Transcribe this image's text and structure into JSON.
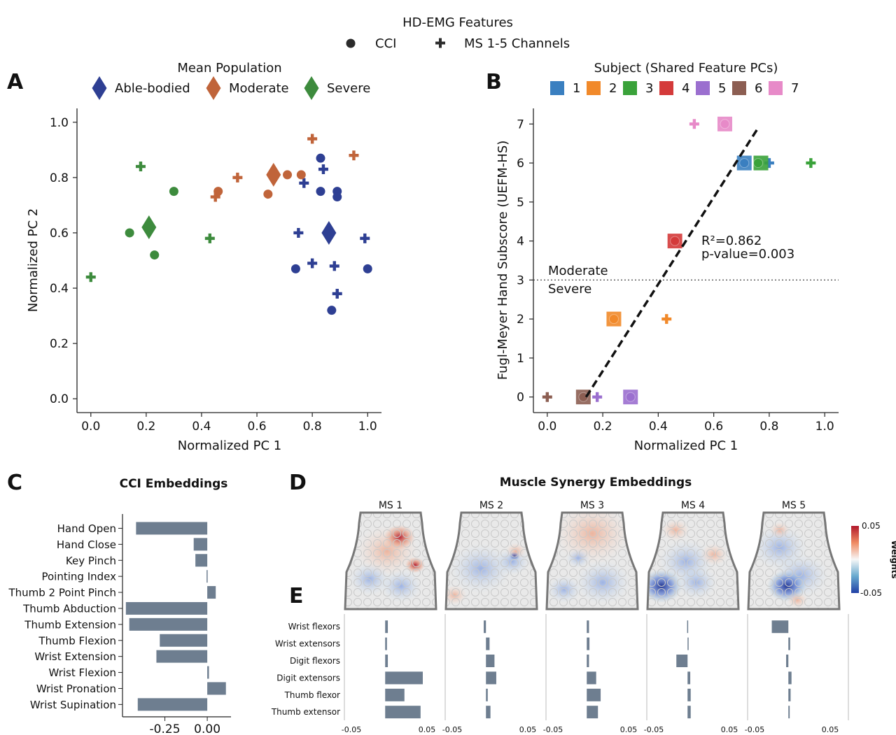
{
  "colors": {
    "able": "#2e3f93",
    "moderate": "#c0643a",
    "severe": "#3d8b3d",
    "bar": "#6e7e90",
    "subjects": [
      "#3a7fc0",
      "#f1892a",
      "#3aa23a",
      "#d43a3a",
      "#9b6fcf",
      "#8c5e52",
      "#e78ac8"
    ]
  },
  "top_legend": {
    "title": "HD-EMG Features",
    "items": [
      {
        "label": "CCI",
        "marker": "circle"
      },
      {
        "label": "MS 1-5 Channels",
        "marker": "plus"
      }
    ]
  },
  "chart_data": [
    {
      "panel": "A",
      "type": "scatter",
      "xlabel": "Normalized PC 1",
      "ylabel": "Normalized PC 2",
      "xlim": [
        -0.05,
        1.05
      ],
      "ylim": [
        -0.05,
        1.05
      ],
      "xticks": [
        "0.0",
        "0.2",
        "0.4",
        "0.6",
        "0.8",
        "1.0"
      ],
      "yticks": [
        "0.0",
        "0.2",
        "0.4",
        "0.6",
        "0.8",
        "1.0"
      ],
      "legend_title": "Mean Population",
      "legend": [
        "Able-bodied",
        "Moderate",
        "Severe"
      ],
      "series": [
        {
          "name": "Able-bodied",
          "color_key": "able",
          "cci": [
            [
              0.83,
              0.87
            ],
            [
              0.83,
              0.75
            ],
            [
              0.89,
              0.75
            ],
            [
              0.89,
              0.73
            ],
            [
              0.74,
              0.47
            ],
            [
              1.0,
              0.47
            ],
            [
              0.87,
              0.32
            ]
          ],
          "ms": [
            [
              0.84,
              0.83
            ],
            [
              0.77,
              0.78
            ],
            [
              0.75,
              0.6
            ],
            [
              0.99,
              0.58
            ],
            [
              0.8,
              0.49
            ],
            [
              0.88,
              0.48
            ],
            [
              0.89,
              0.38
            ]
          ],
          "mean": [
            0.86,
            0.6
          ]
        },
        {
          "name": "Moderate",
          "color_key": "moderate",
          "cci": [
            [
              0.46,
              0.75
            ],
            [
              0.64,
              0.74
            ],
            [
              0.71,
              0.81
            ],
            [
              0.76,
              0.81
            ]
          ],
          "ms": [
            [
              0.8,
              0.94
            ],
            [
              0.95,
              0.88
            ],
            [
              0.53,
              0.8
            ],
            [
              0.45,
              0.73
            ]
          ],
          "mean": [
            0.66,
            0.81
          ]
        },
        {
          "name": "Severe",
          "color_key": "severe",
          "cci": [
            [
              0.3,
              0.75
            ],
            [
              0.14,
              0.6
            ],
            [
              0.23,
              0.52
            ]
          ],
          "ms": [
            [
              0.18,
              0.84
            ],
            [
              0.43,
              0.58
            ],
            [
              0.0,
              0.44
            ]
          ],
          "mean": [
            0.21,
            0.62
          ]
        }
      ]
    },
    {
      "panel": "B",
      "type": "scatter",
      "xlabel": "Normalized PC 1",
      "ylabel": "Fugl-Meyer Hand Subscore (UEFM-HS)",
      "xlim": [
        -0.05,
        1.05
      ],
      "ylim": [
        -0.4,
        7.4
      ],
      "xticks": [
        "0.0",
        "0.2",
        "0.4",
        "0.6",
        "0.8",
        "1.0"
      ],
      "yticks": [
        "0",
        "1",
        "2",
        "3",
        "4",
        "5",
        "6",
        "7"
      ],
      "legend_title": "Subject (Shared Feature PCs)",
      "legend": [
        "1",
        "2",
        "3",
        "4",
        "5",
        "6",
        "7"
      ],
      "points": [
        {
          "subject": 1,
          "y": 6,
          "square": 0.71,
          "cci": 0.71,
          "ms": 0.8
        },
        {
          "subject": 2,
          "y": 2,
          "square": 0.24,
          "cci": 0.24,
          "ms": 0.43
        },
        {
          "subject": 3,
          "y": 6,
          "square": 0.77,
          "cci": 0.76,
          "ms": 0.95
        },
        {
          "subject": 4,
          "y": 4,
          "square": 0.46,
          "cci": 0.46,
          "ms": null
        },
        {
          "subject": 5,
          "y": 0,
          "square": 0.3,
          "cci": 0.3,
          "ms": 0.18
        },
        {
          "subject": 6,
          "y": 0,
          "square": 0.13,
          "cci": 0.13,
          "ms": 0.0
        },
        {
          "subject": 7,
          "y": 7,
          "square": 0.64,
          "cci": 0.64,
          "ms": 0.53
        }
      ],
      "fit_line": [
        [
          0.14,
          0
        ],
        [
          0.76,
          6.9
        ]
      ],
      "threshold_y": 3,
      "threshold_labels": [
        "Moderate",
        "Severe"
      ],
      "stats": [
        "R²=0.862",
        "p-value=0.003"
      ]
    },
    {
      "panel": "C",
      "type": "bar",
      "orientation": "horizontal",
      "title": "CCI Embeddings",
      "xlim": [
        -0.5,
        0.14
      ],
      "xticks": [
        "-0.25",
        "0.00"
      ],
      "categories": [
        "Hand Open",
        "Hand Close",
        "Key Pinch",
        "Pointing Index",
        "Thumb 2 Point Pinch",
        "Thumb Abduction",
        "Thumb Extension",
        "Thumb Flexion",
        "Wrist Extension",
        "Wrist Flexion",
        "Wrist Pronation",
        "Wrist Supination"
      ],
      "values": [
        -0.42,
        -0.08,
        -0.07,
        -0.004,
        0.05,
        -0.48,
        -0.46,
        -0.28,
        -0.3,
        0.01,
        0.11,
        -0.41
      ]
    },
    {
      "panel": "E",
      "type": "bar",
      "orientation": "horizontal",
      "xlim": [
        -0.05,
        0.05
      ],
      "xtick_labels": [
        "-0.05",
        "0.05"
      ],
      "categories": [
        "Wrist flexors",
        "Wrist extensors",
        "Digit flexors",
        "Digit extensors",
        "Thumb flexor",
        "Thumb extensor"
      ],
      "series": [
        {
          "name": "MS 1",
          "values": [
            -0.0015,
            -0.0025,
            -0.0015,
            0.0375,
            0.017,
            0.035
          ]
        },
        {
          "name": "MS 2",
          "values": [
            -0.007,
            -0.0005,
            0.005,
            0.007,
            -0.0025,
            0.0005
          ]
        },
        {
          "name": "MS 3",
          "values": [
            -0.002,
            -0.0015,
            -0.002,
            0.006,
            0.011,
            0.008
          ]
        },
        {
          "name": "MS 4",
          "values": [
            -0.005,
            -0.0035,
            -0.017,
            -0.0015,
            -0.001,
            -0.001
          ]
        },
        {
          "name": "MS 5",
          "values": [
            -0.023,
            -0.0025,
            -0.007,
            -0.001,
            -0.002,
            -0.003
          ]
        }
      ]
    }
  ],
  "panel_letters": [
    "A",
    "B",
    "C",
    "D",
    "E"
  ],
  "panel_d": {
    "title": "Muscle Synergy Embeddings",
    "maps": [
      "MS 1",
      "MS 2",
      "MS 3",
      "MS 4",
      "MS 5"
    ],
    "colorbar_label": "Weights",
    "colorbar_max": "0.05",
    "colorbar_min": "-0.05"
  }
}
